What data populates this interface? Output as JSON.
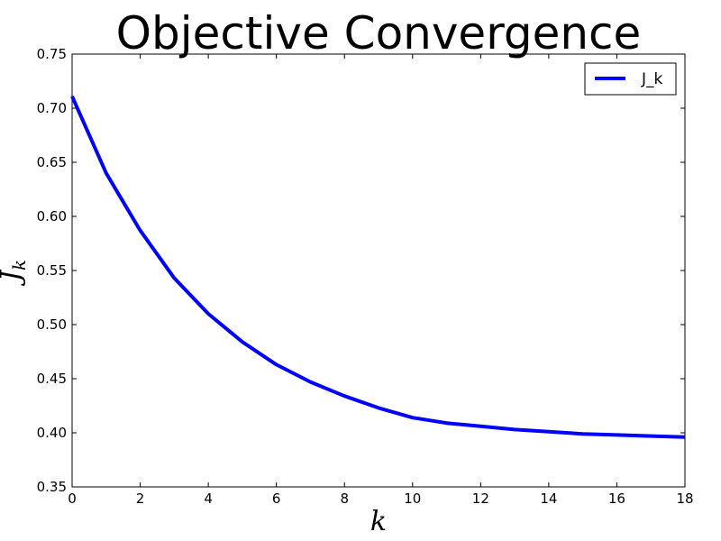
{
  "chart_data": {
    "type": "line",
    "title": "Objective Convergence",
    "xlabel": "k",
    "ylabel": "J_k",
    "xlim": [
      0,
      18
    ],
    "ylim": [
      0.35,
      0.75
    ],
    "x_ticks": [
      0,
      2,
      4,
      6,
      8,
      10,
      12,
      14,
      16,
      18
    ],
    "y_ticks": [
      0.35,
      0.4,
      0.45,
      0.5,
      0.55,
      0.6,
      0.65,
      0.7,
      0.75
    ],
    "grid": false,
    "legend": {
      "placement": "top-right"
    },
    "series": [
      {
        "name": "J_k",
        "color": "#0000ff",
        "x": [
          0,
          1,
          2,
          3,
          4,
          5,
          6,
          7,
          8,
          9,
          10,
          11,
          12,
          13,
          14,
          15,
          16,
          17,
          18
        ],
        "y": [
          0.711,
          0.64,
          0.587,
          0.543,
          0.51,
          0.484,
          0.463,
          0.447,
          0.434,
          0.423,
          0.414,
          0.409,
          0.406,
          0.403,
          0.401,
          0.399,
          0.398,
          0.397,
          0.396
        ]
      }
    ]
  }
}
